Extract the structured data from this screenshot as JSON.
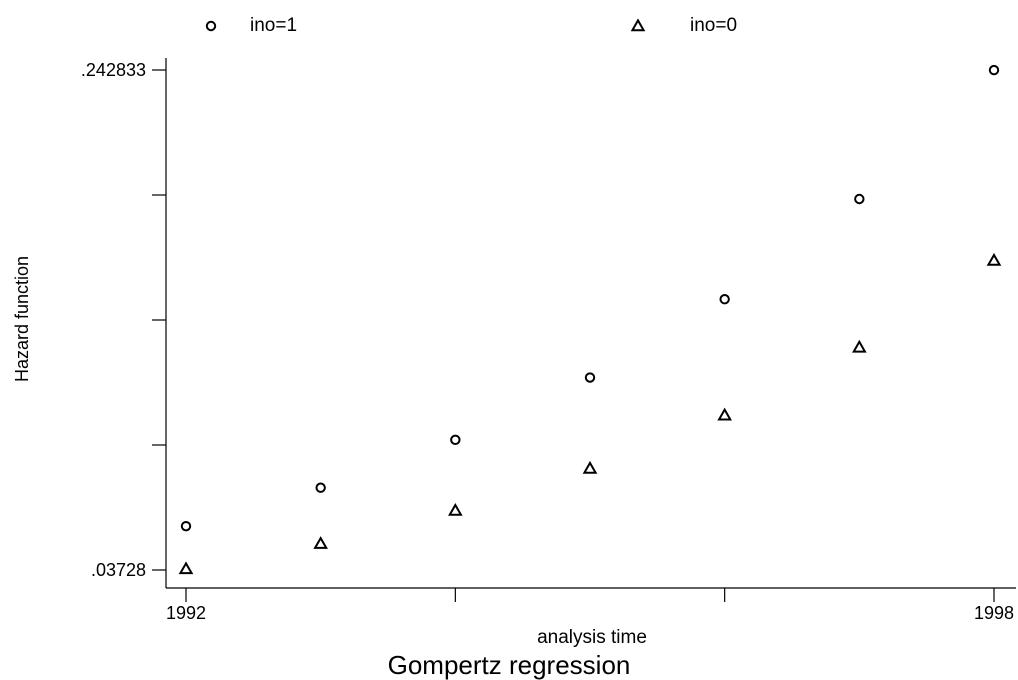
{
  "chart_data": {
    "type": "scatter",
    "title": "Gompertz regression",
    "xlabel": "analysis time",
    "ylabel": "Hazard function",
    "x_ticks": [
      1992,
      1993,
      1994,
      1995,
      1996,
      1997,
      1998
    ],
    "x_tick_labels": [
      "1992",
      "",
      "",
      "",
      "",
      "",
      "1998"
    ],
    "xlim": [
      1992,
      1998
    ],
    "ylim": [
      0.03728,
      0.242833
    ],
    "y_ticks": [
      0.03728,
      0.088668,
      0.140057,
      0.191445,
      0.242833
    ],
    "y_tick_labels": [
      ".03728",
      "",
      "",
      "",
      ".242833"
    ],
    "x": [
      1992,
      1993,
      1994,
      1995,
      1996,
      1997,
      1998
    ],
    "series": [
      {
        "name": "ino=1",
        "marker": "circle",
        "values": [
          0.0553,
          0.0711,
          0.0908,
          0.1164,
          0.1486,
          0.1898,
          0.2428
        ]
      },
      {
        "name": "ino=0",
        "marker": "triangle",
        "values": [
          0.0377,
          0.0481,
          0.0617,
          0.079,
          0.1009,
          0.1288,
          0.1645
        ]
      }
    ],
    "legend": "top",
    "grid": false
  }
}
